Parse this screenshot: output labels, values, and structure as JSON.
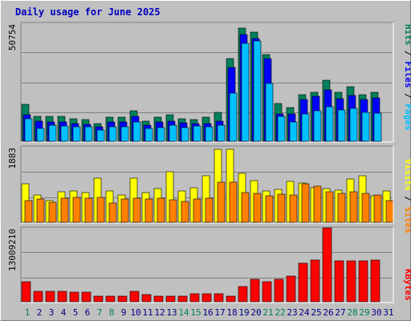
{
  "title": "Daily usage for June 2025",
  "colors": {
    "hits": "#00805c",
    "files": "#0000ff",
    "pages": "#00c0ff",
    "visits": "#ffff00",
    "sites": "#ff8000",
    "kbytes": "#ff0000",
    "weekend_label": "#00805c",
    "weekday_label": "#000080",
    "title": "#0000c0"
  },
  "legend": {
    "top": [
      "Pages",
      "Files",
      "Hits"
    ],
    "middle": [
      "Sites",
      "Visits"
    ],
    "bottom": [
      "KBytes"
    ]
  },
  "chart_data": [
    {
      "type": "bar",
      "panel": "hits-files-pages",
      "ymax_label": "50754",
      "ylim": [
        0,
        50754
      ],
      "categories": [
        "1",
        "2",
        "3",
        "4",
        "5",
        "6",
        "7",
        "8",
        "9",
        "10",
        "11",
        "12",
        "13",
        "14",
        "15",
        "16",
        "17",
        "18",
        "19",
        "20",
        "21",
        "22",
        "23",
        "24",
        "25",
        "26",
        "27",
        "28",
        "29",
        "30",
        "31"
      ],
      "series": [
        {
          "name": "Hits",
          "values": [
            16500,
            11000,
            11000,
            11000,
            10000,
            9800,
            7800,
            10800,
            10800,
            13600,
            9000,
            10800,
            11800,
            10200,
            9800,
            10800,
            13000,
            37000,
            50754,
            49000,
            39000,
            17000,
            15000,
            21000,
            22000,
            27500,
            22000,
            24500,
            21000,
            22000,
            0
          ]
        },
        {
          "name": "Files",
          "values": [
            12000,
            9000,
            8800,
            8800,
            8000,
            7400,
            6400,
            8800,
            8800,
            11200,
            7100,
            8500,
            9100,
            8300,
            7800,
            7900,
            9000,
            33000,
            48000,
            46000,
            37000,
            12300,
            12300,
            18600,
            20000,
            23000,
            19000,
            20400,
            18700,
            19600,
            0
          ]
        },
        {
          "name": "Pages",
          "values": [
            10000,
            5800,
            7200,
            7000,
            6500,
            6400,
            5000,
            6400,
            6600,
            8800,
            5600,
            6000,
            7200,
            6200,
            6800,
            6500,
            7200,
            21500,
            44000,
            45000,
            26000,
            11200,
            8700,
            12200,
            13600,
            15500,
            14000,
            14600,
            13000,
            12600,
            0
          ]
        }
      ]
    },
    {
      "type": "bar",
      "panel": "visits-sites",
      "ymax_label": "1883",
      "ylim": [
        0,
        1883
      ],
      "categories": [
        "1",
        "2",
        "3",
        "4",
        "5",
        "6",
        "7",
        "8",
        "9",
        "10",
        "11",
        "12",
        "13",
        "14",
        "15",
        "16",
        "17",
        "18",
        "19",
        "20",
        "21",
        "22",
        "23",
        "24",
        "25",
        "26",
        "27",
        "28",
        "29",
        "30",
        "31"
      ],
      "series": [
        {
          "name": "Visits",
          "values": [
            980,
            700,
            560,
            770,
            790,
            760,
            1120,
            800,
            700,
            1130,
            750,
            860,
            1280,
            800,
            890,
            1190,
            1870,
            1870,
            1250,
            1070,
            800,
            830,
            1040,
            1010,
            880,
            860,
            820,
            1110,
            1190,
            670,
            790
          ]
        },
        {
          "name": "Sites",
          "values": [
            550,
            600,
            510,
            610,
            640,
            610,
            630,
            490,
            600,
            610,
            600,
            610,
            580,
            540,
            600,
            620,
            1020,
            1030,
            760,
            740,
            670,
            710,
            700,
            980,
            930,
            770,
            730,
            780,
            740,
            700,
            550
          ]
        }
      ]
    },
    {
      "type": "bar",
      "panel": "kbytes",
      "ymax_label": "13009210",
      "ylim": [
        0,
        13009210
      ],
      "categories": [
        "1",
        "2",
        "3",
        "4",
        "5",
        "6",
        "7",
        "8",
        "9",
        "10",
        "11",
        "12",
        "13",
        "14",
        "15",
        "16",
        "17",
        "18",
        "19",
        "20",
        "21",
        "22",
        "23",
        "24",
        "25",
        "26",
        "27",
        "28",
        "29",
        "30",
        "31"
      ],
      "series": [
        {
          "name": "KBytes",
          "values": [
            3600000,
            1900000,
            1900000,
            1900000,
            1700000,
            1700000,
            950000,
            950000,
            950000,
            1900000,
            1250000,
            950000,
            950000,
            950000,
            1450000,
            1450000,
            1450000,
            950000,
            2650000,
            4000000,
            3600000,
            3900000,
            4500000,
            6800000,
            7400000,
            13009210,
            7200000,
            7200000,
            7200000,
            7300000,
            0
          ]
        }
      ]
    }
  ]
}
